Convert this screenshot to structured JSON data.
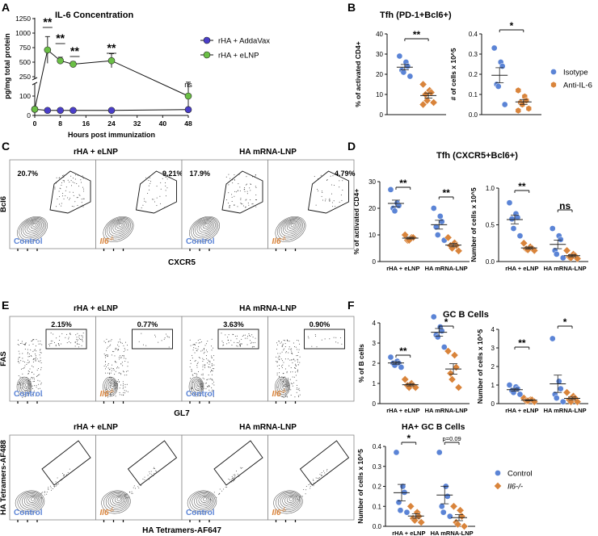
{
  "colors": {
    "blue": "#5b84d6",
    "orange": "#d9843b",
    "green": "#6abf45",
    "purple": "#4a3ec9",
    "gray": "#444444"
  },
  "panels": {
    "A": {
      "letter": "A",
      "chart_title": "IL-6 Concentration"
    },
    "B": {
      "letter": "B",
      "title": "Tfh (PD-1+Bcl6+)"
    },
    "C": {
      "letter": "C",
      "group_headers": [
        "rHA + eLNP",
        "HA mRNA-LNP"
      ],
      "y_axis": "Bcl6",
      "x_axis": "CXCR5",
      "plots": [
        {
          "label": "Control",
          "percent": "20.7%"
        },
        {
          "label": "Il6-/-",
          "percent": "9.21%"
        },
        {
          "label": "Control",
          "percent": "17.9%"
        },
        {
          "label": "Il6-/-",
          "percent": "4.79%"
        }
      ]
    },
    "D": {
      "letter": "D",
      "title": "Tfh (CXCR5+Bcl6+)"
    },
    "E": {
      "letter": "E",
      "group_headers": [
        "rHA + eLNP",
        "HA mRNA-LNP"
      ],
      "y_axis": "FAS",
      "x_axis": "GL7",
      "plots": [
        {
          "label": "Control",
          "percent": "2.15%"
        },
        {
          "label": "Il6-/-",
          "percent": "0.77%"
        },
        {
          "label": "Control",
          "percent": "3.63%"
        },
        {
          "label": "Il6-/-",
          "percent": "0.90%"
        }
      ],
      "lower_group_headers": [
        "rHA + eLNP",
        "HA mRNA-LNP"
      ],
      "lower_y_axis": "HA Tetramers-AF488",
      "lower_x_axis": "HA Tetramers-AF647",
      "lower_plots": [
        {
          "label": "Control"
        },
        {
          "label": "Il6-/-"
        },
        {
          "label": "Control"
        },
        {
          "label": "Il6-/-"
        }
      ]
    },
    "F": {
      "letter": "F",
      "title": "GC B Cells",
      "sub_title": "HA+ GC B Cells"
    }
  },
  "legends": {
    "B": [
      {
        "label": "Isotype",
        "color": "#5b84d6",
        "shape": "circle"
      },
      {
        "label": "Anti-IL-6",
        "color": "#d9843b",
        "shape": "hexagon"
      }
    ],
    "F": [
      {
        "label": "Control",
        "color": "#5b84d6",
        "shape": "circle"
      },
      {
        "label": "Il6-/-",
        "color": "#d9843b",
        "shape": "diamond"
      }
    ]
  },
  "chart_data": [
    {
      "id": "A",
      "type": "line",
      "title": "IL-6 Concentration",
      "xlabel": "Hours post immunization",
      "ylabel": "pg/mg total protein",
      "xlim": [
        0,
        48
      ],
      "xticks": [
        0,
        8,
        16,
        24,
        32,
        40,
        48
      ],
      "yticks": [
        0,
        100,
        250,
        500,
        750,
        1000,
        1250
      ],
      "axis_break": "broken y-axis between 100 and 250",
      "series": [
        {
          "name": "rHA + AddaVax",
          "color": "#4a3ec9",
          "x": [
            0,
            4,
            8,
            12,
            24,
            48
          ],
          "y": [
            32,
            26,
            26,
            26,
            26,
            30
          ]
        },
        {
          "name": "rHA + eLNP",
          "color": "#6abf45",
          "x": [
            0,
            4,
            8,
            12,
            24,
            48
          ],
          "y": [
            32,
            710,
            525,
            465,
            525,
            100
          ]
        }
      ],
      "annotations": [
        {
          "x": 4,
          "text": "**"
        },
        {
          "x": 8,
          "text": "**"
        },
        {
          "x": 12,
          "text": "**"
        },
        {
          "x": 24,
          "text": "**"
        },
        {
          "x": 48,
          "text": "ns"
        }
      ]
    },
    {
      "id": "B1",
      "type": "scatter",
      "ylabel": "% of activated CD4+",
      "ylim": [
        0,
        40
      ],
      "yticks": [
        0,
        10,
        20,
        30,
        40
      ],
      "groups": [
        {
          "name": "Isotype",
          "values": [
            29,
            26,
            24,
            22,
            21,
            19
          ]
        },
        {
          "name": "Anti-IL-6",
          "values": [
            15,
            12,
            11,
            10,
            7,
            6,
            5
          ]
        }
      ],
      "significance": "**"
    },
    {
      "id": "B2",
      "type": "scatter",
      "ylabel": "# of cells x 10^5",
      "ylim": [
        0,
        0.4
      ],
      "yticks": [
        0.0,
        0.1,
        0.2,
        0.3,
        0.4
      ],
      "groups": [
        {
          "name": "Isotype",
          "values": [
            0.33,
            0.26,
            0.24,
            0.15,
            0.14,
            0.05
          ]
        },
        {
          "name": "Anti-IL-6",
          "values": [
            0.12,
            0.09,
            0.07,
            0.06,
            0.05,
            0.03,
            0.02
          ]
        }
      ],
      "significance": "*"
    },
    {
      "id": "D1",
      "type": "scatter",
      "ylabel": "% of activated CD4+",
      "ylim": [
        0,
        30
      ],
      "yticks": [
        0,
        10,
        20,
        30
      ],
      "categories": [
        "rHA + eLNP",
        "HA mRNA-LNP"
      ],
      "groups": [
        {
          "category": "rHA + eLNP",
          "name": "Control",
          "values": [
            27,
            22,
            21,
            20,
            19
          ]
        },
        {
          "category": "rHA + eLNP",
          "name": "Il6-/-",
          "values": [
            10,
            9,
            9,
            8,
            8
          ]
        },
        {
          "category": "HA mRNA-LNP",
          "name": "Control",
          "values": [
            20,
            17,
            15,
            13,
            10,
            8
          ]
        },
        {
          "category": "HA mRNA-LNP",
          "name": "Il6-/-",
          "values": [
            9,
            7,
            6,
            6,
            5,
            4
          ]
        }
      ],
      "significance": [
        "**",
        "**"
      ]
    },
    {
      "id": "D2",
      "type": "scatter",
      "ylabel": "Number of cells x 10^5",
      "ylim": [
        0,
        1.0
      ],
      "yticks": [
        0.0,
        0.5,
        1.0
      ],
      "categories": [
        "rHA + eLNP",
        "HA mRNA-LNP"
      ],
      "groups": [
        {
          "category": "rHA + eLNP",
          "name": "Control",
          "values": [
            0.8,
            0.65,
            0.6,
            0.58,
            0.45,
            0.35
          ]
        },
        {
          "category": "rHA + eLNP",
          "name": "Il6-/-",
          "values": [
            0.25,
            0.2,
            0.18,
            0.17,
            0.16,
            0.15
          ]
        },
        {
          "category": "HA mRNA-LNP",
          "name": "Control",
          "values": [
            0.45,
            0.35,
            0.3,
            0.15,
            0.1,
            0.05
          ]
        },
        {
          "category": "HA mRNA-LNP",
          "name": "Il6-/-",
          "values": [
            0.15,
            0.1,
            0.08,
            0.06,
            0.05,
            0.04
          ]
        }
      ],
      "significance": [
        "**",
        "ns"
      ]
    },
    {
      "id": "F1",
      "type": "scatter",
      "ylabel": "% of B cells",
      "ylim": [
        0,
        4
      ],
      "yticks": [
        0,
        1,
        2,
        3,
        4
      ],
      "categories": [
        "rHA + eLNP",
        "HA mRNA-LNP"
      ],
      "groups": [
        {
          "category": "rHA + eLNP",
          "name": "Control",
          "values": [
            2.3,
            2.1,
            2.0,
            2.0,
            1.9,
            1.8
          ]
        },
        {
          "category": "rHA + eLNP",
          "name": "Il6-/-",
          "values": [
            1.2,
            1.0,
            0.9,
            0.9,
            0.8,
            0.8
          ]
        },
        {
          "category": "HA mRNA-LNP",
          "name": "Control",
          "values": [
            4.3,
            3.8,
            3.6,
            3.4,
            3.3,
            2.8
          ]
        },
        {
          "category": "HA mRNA-LNP",
          "name": "Il6-/-",
          "values": [
            2.6,
            2.4,
            1.8,
            1.5,
            1.2,
            0.8
          ]
        }
      ],
      "significance": [
        "**",
        "*"
      ]
    },
    {
      "id": "F2",
      "type": "scatter",
      "ylabel": "Number of cells x 10^5",
      "ylim": [
        0,
        4
      ],
      "yticks": [
        0,
        1,
        2,
        3,
        4
      ],
      "categories": [
        "rHA + eLNP",
        "HA mRNA-LNP"
      ],
      "groups": [
        {
          "category": "rHA + eLNP",
          "name": "Control",
          "values": [
            1.0,
            0.9,
            0.8,
            0.7,
            0.6,
            0.5
          ]
        },
        {
          "category": "rHA + eLNP",
          "name": "Il6-/-",
          "values": [
            0.3,
            0.2,
            0.2,
            0.15,
            0.15,
            0.1
          ]
        },
        {
          "category": "HA mRNA-LNP",
          "name": "Control",
          "values": [
            3.5,
            1.2,
            0.8,
            0.5,
            0.3,
            0.1
          ]
        },
        {
          "category": "HA mRNA-LNP",
          "name": "Il6-/-",
          "values": [
            0.6,
            0.4,
            0.3,
            0.2,
            0.1,
            0.1
          ]
        }
      ],
      "significance": [
        "**",
        "*"
      ]
    },
    {
      "id": "F3",
      "type": "scatter",
      "title": "HA+ GC B Cells",
      "ylabel": "Number of cells x 10^5",
      "ylim": [
        0,
        0.4
      ],
      "yticks": [
        0.0,
        0.1,
        0.2,
        0.3,
        0.4
      ],
      "categories": [
        "rHA + eLNP",
        "HA mRNA-LNP"
      ],
      "groups": [
        {
          "category": "rHA + eLNP",
          "name": "Control",
          "values": [
            0.37,
            0.2,
            0.17,
            0.12,
            0.08,
            0.07
          ]
        },
        {
          "category": "rHA + eLNP",
          "name": "Il6-/-",
          "values": [
            0.1,
            0.07,
            0.05,
            0.04,
            0.03,
            0.02
          ]
        },
        {
          "category": "HA mRNA-LNP",
          "name": "Control",
          "values": [
            0.37,
            0.2,
            0.15,
            0.1,
            0.07,
            0.05
          ]
        },
        {
          "category": "HA mRNA-LNP",
          "name": "Il6-/-",
          "values": [
            0.1,
            0.08,
            0.05,
            0.02,
            0.01,
            0.0
          ]
        }
      ],
      "significance": [
        "*",
        "p=0.09"
      ]
    }
  ]
}
